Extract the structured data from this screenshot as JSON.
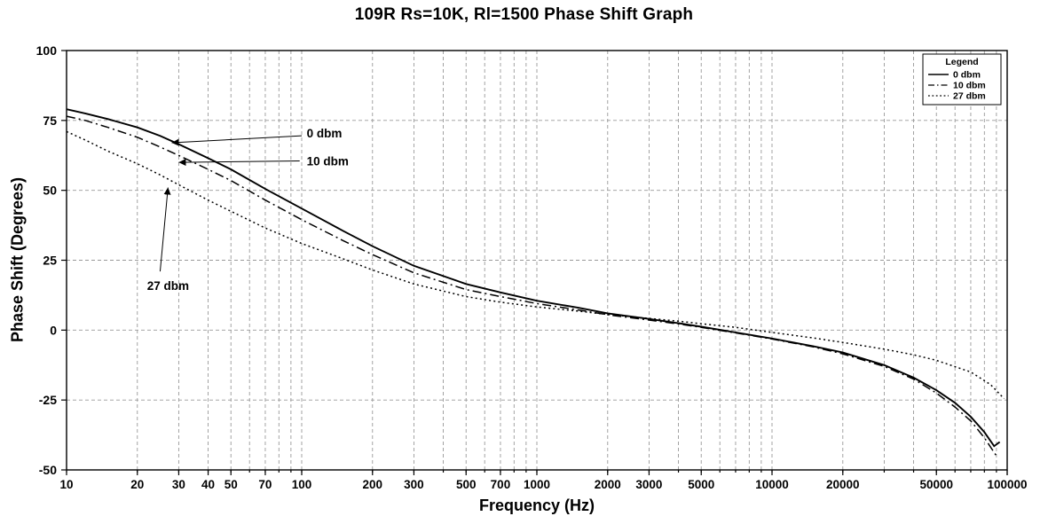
{
  "chart_data": {
    "type": "line",
    "title": "109R Rs=10K, Rl=1500 Phase Shift Graph",
    "xlabel": "Frequency (Hz)",
    "ylabel": "Phase Shift (Degrees)",
    "x_scale": "log",
    "xlim": [
      10,
      100000
    ],
    "ylim": [
      -50,
      100
    ],
    "grid": true,
    "y_ticks": [
      -50,
      -25,
      0,
      25,
      50,
      75,
      100
    ],
    "x_tick_labels": [
      "10",
      "20",
      "30",
      "40",
      "50",
      "70",
      "100",
      "200",
      "300",
      "500",
      "700",
      "1000",
      "2000",
      "3000",
      "5000",
      "10000",
      "20000",
      "50000",
      "100000"
    ],
    "x_tick_values": [
      10,
      20,
      30,
      40,
      50,
      70,
      100,
      200,
      300,
      500,
      700,
      1000,
      2000,
      3000,
      5000,
      10000,
      20000,
      50000,
      100000
    ],
    "colors": {
      "line": "#000000",
      "grid": "#999999",
      "frame": "#000000"
    },
    "legend": {
      "title": "Legend",
      "position": "top-right",
      "entries": [
        {
          "label": "0 dbm",
          "style": "solid"
        },
        {
          "label": "10 dbm",
          "style": "dashdot"
        },
        {
          "label": "27 dbm",
          "style": "dotted"
        }
      ]
    },
    "series": [
      {
        "name": "0 dbm",
        "style": "solid",
        "points": [
          [
            10,
            79
          ],
          [
            12,
            77.5
          ],
          [
            15,
            75.5
          ],
          [
            20,
            72.5
          ],
          [
            25,
            69.5
          ],
          [
            30,
            66.5
          ],
          [
            40,
            61.5
          ],
          [
            50,
            57.5
          ],
          [
            70,
            50.5
          ],
          [
            100,
            43.5
          ],
          [
            150,
            35.5
          ],
          [
            200,
            30
          ],
          [
            300,
            23
          ],
          [
            500,
            16.5
          ],
          [
            700,
            13.5
          ],
          [
            1000,
            10.5
          ],
          [
            1500,
            8
          ],
          [
            2000,
            6
          ],
          [
            3000,
            4
          ],
          [
            4000,
            2.5
          ],
          [
            5000,
            1.2
          ],
          [
            7000,
            -0.8
          ],
          [
            10000,
            -3
          ],
          [
            15000,
            -5.8
          ],
          [
            20000,
            -8
          ],
          [
            30000,
            -12.5
          ],
          [
            40000,
            -17
          ],
          [
            50000,
            -21.5
          ],
          [
            60000,
            -26
          ],
          [
            70000,
            -31
          ],
          [
            80000,
            -36.5
          ],
          [
            88000,
            -41.5
          ],
          [
            93000,
            -40
          ]
        ]
      },
      {
        "name": "10 dbm",
        "style": "dashdot",
        "points": [
          [
            10,
            76.5
          ],
          [
            12,
            75
          ],
          [
            15,
            72.5
          ],
          [
            20,
            69
          ],
          [
            25,
            65.5
          ],
          [
            30,
            62.5
          ],
          [
            40,
            57.5
          ],
          [
            50,
            53.5
          ],
          [
            70,
            46.5
          ],
          [
            100,
            39.5
          ],
          [
            150,
            32
          ],
          [
            200,
            27
          ],
          [
            300,
            20.5
          ],
          [
            500,
            14.5
          ],
          [
            700,
            12
          ],
          [
            1000,
            9.5
          ],
          [
            1500,
            7.2
          ],
          [
            2000,
            5.5
          ],
          [
            3000,
            3.6
          ],
          [
            4000,
            2.2
          ],
          [
            5000,
            1
          ],
          [
            7000,
            -1
          ],
          [
            10000,
            -3.2
          ],
          [
            15000,
            -6
          ],
          [
            20000,
            -8.5
          ],
          [
            30000,
            -13
          ],
          [
            40000,
            -17.5
          ],
          [
            50000,
            -22.5
          ],
          [
            60000,
            -27.5
          ],
          [
            70000,
            -32.5
          ],
          [
            80000,
            -38.5
          ],
          [
            90000,
            -45
          ]
        ]
      },
      {
        "name": "27 dbm",
        "style": "dotted",
        "points": [
          [
            10,
            71
          ],
          [
            12,
            68
          ],
          [
            15,
            64
          ],
          [
            20,
            59.5
          ],
          [
            25,
            55.5
          ],
          [
            30,
            52
          ],
          [
            40,
            46.5
          ],
          [
            50,
            42.5
          ],
          [
            70,
            36.5
          ],
          [
            100,
            31
          ],
          [
            150,
            25.5
          ],
          [
            200,
            21.5
          ],
          [
            300,
            16.5
          ],
          [
            500,
            12
          ],
          [
            700,
            10
          ],
          [
            1000,
            8.3
          ],
          [
            1500,
            6.8
          ],
          [
            2000,
            5.6
          ],
          [
            3000,
            4.2
          ],
          [
            4000,
            3.2
          ],
          [
            5000,
            2.3
          ],
          [
            7000,
            1
          ],
          [
            10000,
            -0.8
          ],
          [
            15000,
            -2.8
          ],
          [
            20000,
            -4.4
          ],
          [
            30000,
            -6.8
          ],
          [
            40000,
            -8.8
          ],
          [
            50000,
            -10.8
          ],
          [
            70000,
            -15
          ],
          [
            85000,
            -19.5
          ],
          [
            97000,
            -24.5
          ]
        ]
      }
    ],
    "annotations": [
      {
        "label": "0 dbm",
        "text_at": [
          105,
          70.5
        ],
        "anchor": "start",
        "arrow_from": [
          100,
          69.5
        ],
        "arrow_to": [
          28,
          67
        ]
      },
      {
        "label": "10 dbm",
        "text_at": [
          105,
          60.5
        ],
        "anchor": "start",
        "arrow_from": [
          98,
          60.5
        ],
        "arrow_to": [
          30,
          60
        ]
      },
      {
        "label": "27 dbm",
        "text_at": [
          22,
          16
        ],
        "anchor": "start",
        "arrow_from": [
          25,
          21
        ],
        "arrow_to": [
          27,
          51
        ]
      }
    ]
  }
}
